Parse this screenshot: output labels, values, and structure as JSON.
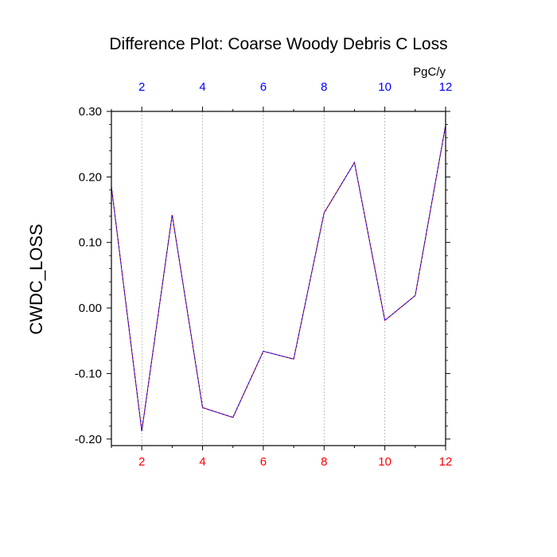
{
  "chart_data": {
    "type": "line",
    "title": "Difference Plot: Coarse Woody Debris C Loss",
    "ylabel": "CWDC_LOSS",
    "xlabel": "",
    "top_axis_unit": "PgC/y",
    "x": [
      1,
      2,
      3,
      4,
      5,
      6,
      7,
      8,
      9,
      10,
      11,
      12
    ],
    "xlim": [
      1,
      12
    ],
    "ylim": [
      -0.21,
      0.3
    ],
    "xticks": [
      2,
      4,
      6,
      8,
      10,
      12
    ],
    "yticks": [
      -0.2,
      -0.1,
      0.0,
      0.1,
      0.2,
      0.3
    ],
    "ytick_labels": [
      "-0.20",
      "-0.10",
      "0.00",
      "0.10",
      "0.20",
      "0.30"
    ],
    "grid_x": true,
    "grid_y": false,
    "series": [
      {
        "values": [
          0.185,
          -0.188,
          0.142,
          -0.152,
          -0.167,
          -0.066,
          -0.078,
          0.145,
          0.222,
          -0.019,
          0.019,
          0.279
        ],
        "color": "#c00000",
        "style": "solid"
      },
      {
        "values": [
          0.185,
          -0.188,
          0.142,
          -0.152,
          -0.167,
          -0.066,
          -0.078,
          0.145,
          0.222,
          -0.019,
          0.019,
          0.279
        ],
        "color": "#0000ff",
        "style": "dashed"
      }
    ],
    "colors": {
      "bottom_tick_labels": "#ff0000",
      "top_tick_labels": "#0000ff",
      "grid": "#999999"
    }
  }
}
